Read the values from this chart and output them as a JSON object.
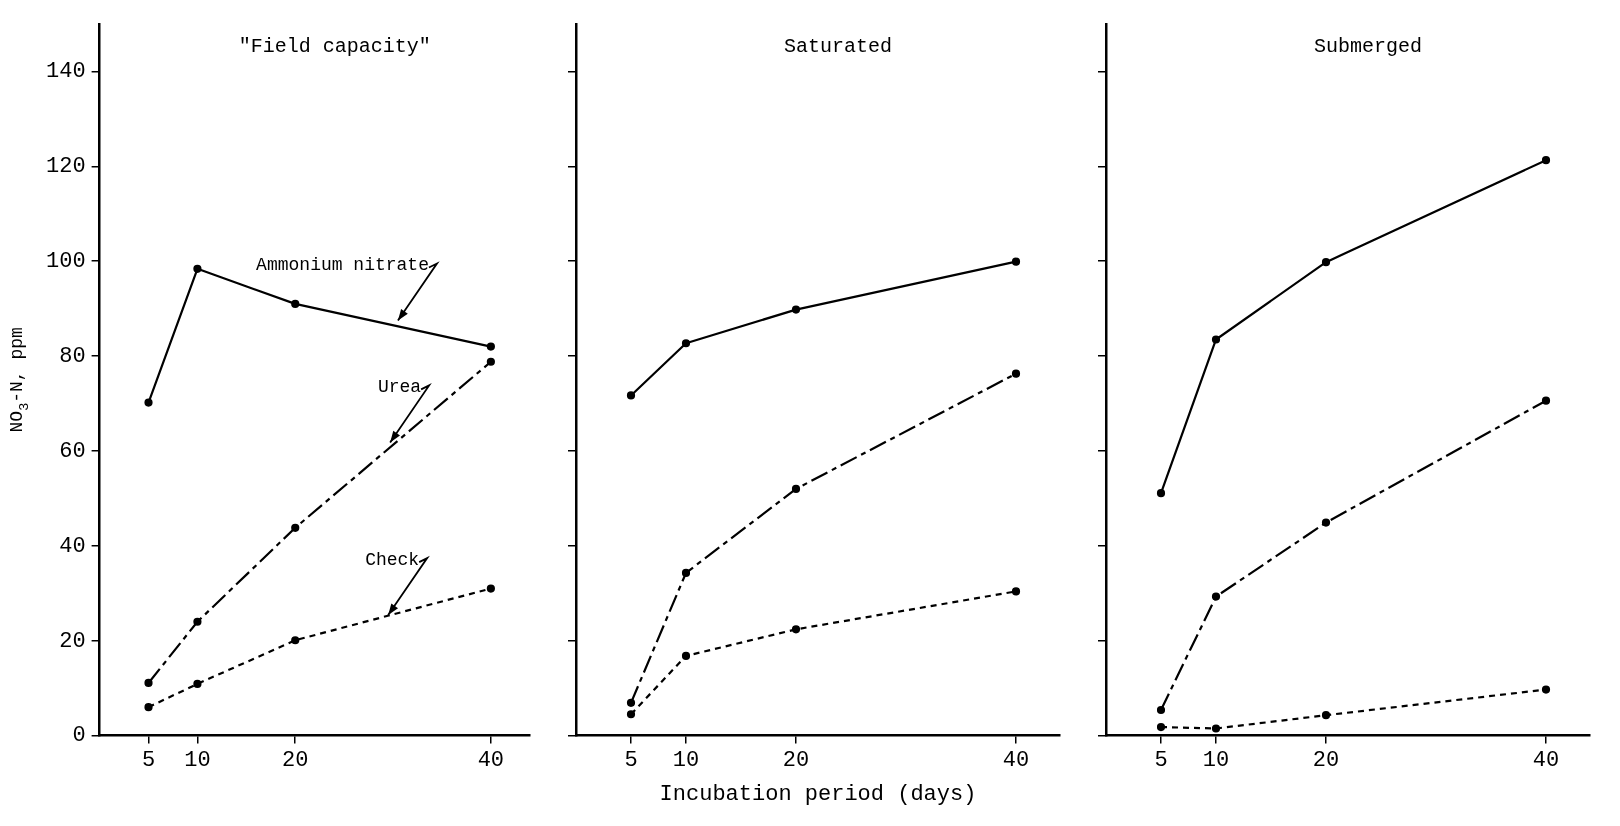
{
  "chart_data": [
    {
      "type": "line",
      "title": "\"Field capacity\"",
      "ylabel": "NO$_{3}$-N, ppm",
      "x": [
        5,
        10,
        20,
        40
      ],
      "xlim": [
        0,
        44
      ],
      "xticks": [
        5,
        10,
        20,
        40
      ],
      "ylim": [
        0,
        150
      ],
      "yticks": [
        0,
        20,
        40,
        60,
        80,
        100,
        120,
        140
      ],
      "grid": false,
      "legend": false,
      "marker": "circle",
      "series": [
        {
          "color": "#000000",
          "line_style": "solid",
          "values": [
            70.2,
            98.4,
            91,
            82
          ]
        },
        {
          "color": "#000000",
          "line_style": "dashed",
          "values": [
            11.1,
            24,
            43.8,
            78.8
          ]
        },
        {
          "color": "#000000",
          "line_style": "dotted",
          "values": [
            6,
            10.9,
            20.1,
            31
          ]
        }
      ],
      "annotations": [
        {
          "text": "Ammonium nitrate",
          "x": 30.5,
          "y": 87.5
        },
        {
          "text": "Urea",
          "x": 29.7,
          "y": 61.8
        },
        {
          "text": "Check",
          "x": 29.5,
          "y": 25.4
        }
      ]
    },
    {
      "type": "line",
      "title": "Saturated",
      "xlabel": "Incubation period (days)",
      "x": [
        5,
        10,
        20,
        40
      ],
      "xlim": [
        0,
        44
      ],
      "xticks": [
        5,
        10,
        20,
        40
      ],
      "ylim": [
        0,
        150
      ],
      "yticks": [
        0,
        20,
        40,
        60,
        80,
        100,
        120,
        140
      ],
      "tick_labels": "x",
      "grid": false,
      "legend": false,
      "marker": "circle",
      "series": [
        {
          "color": "#000000",
          "line_style": "solid",
          "values": [
            71.7,
            82.7,
            89.8,
            99.9
          ]
        },
        {
          "color": "#000000",
          "line_style": "dashed",
          "values": [
            6.9,
            34.3,
            52,
            76.3
          ]
        },
        {
          "color": "#000000",
          "line_style": "dotted",
          "values": [
            4.5,
            16.8,
            22.4,
            30.4
          ]
        }
      ]
    },
    {
      "type": "line",
      "title": "Submerged",
      "x": [
        5,
        10,
        20,
        40
      ],
      "xlim": [
        0,
        44
      ],
      "xticks": [
        5,
        10,
        20,
        40
      ],
      "ylim": [
        0,
        150
      ],
      "yticks": [
        0,
        20,
        40,
        60,
        80,
        100,
        120,
        140
      ],
      "tick_labels": "x",
      "grid": false,
      "legend": false,
      "marker": "circle",
      "series": [
        {
          "color": "#000000",
          "line_style": "solid",
          "values": [
            51.1,
            83.5,
            99.8,
            121.3
          ]
        },
        {
          "color": "#000000",
          "line_style": "dashed",
          "values": [
            5.4,
            29.3,
            44.9,
            70.6
          ]
        },
        {
          "color": "#000000",
          "line_style": "dotted",
          "values": [
            1.8,
            1.5,
            4.3,
            9.7
          ]
        }
      ]
    }
  ]
}
